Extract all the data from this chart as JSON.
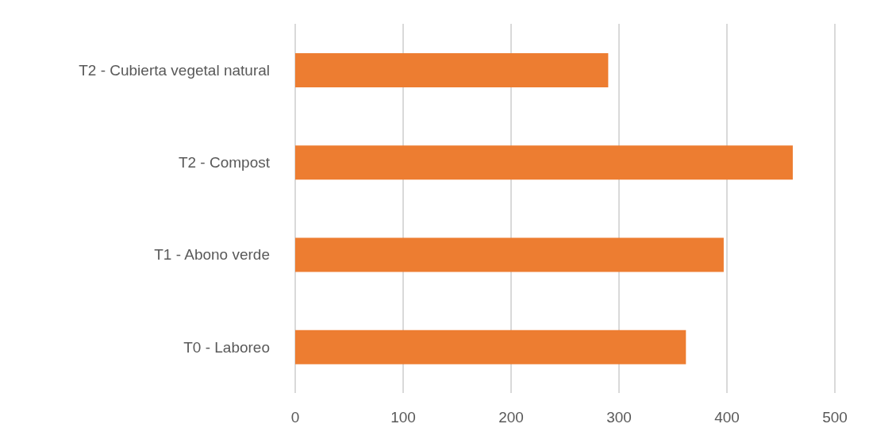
{
  "chart_data": {
    "type": "bar",
    "orientation": "horizontal",
    "categories": [
      "T2 - Cubierta vegetal natural",
      "T2 - Compost",
      "T1 - Abono verde",
      "T0 - Laboreo"
    ],
    "values": [
      290,
      461,
      397,
      362
    ],
    "color": "#ed7d31",
    "xlim": [
      0,
      500
    ],
    "xticks": [
      0,
      100,
      200,
      300,
      400,
      500
    ],
    "grid": "x"
  }
}
